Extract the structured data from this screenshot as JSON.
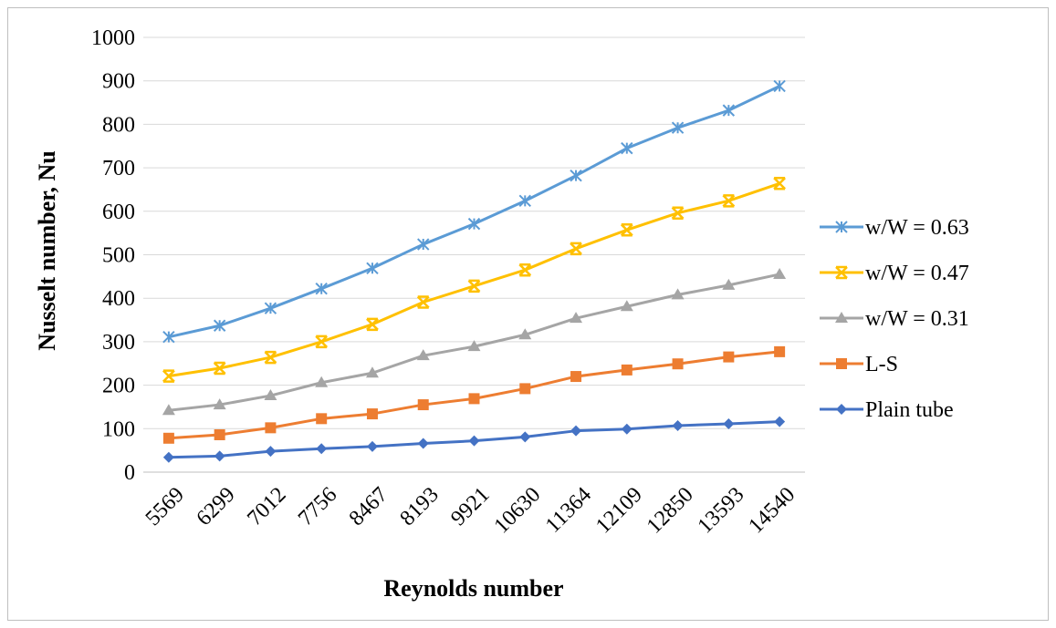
{
  "chart_data": {
    "type": "line",
    "xlabel": "Reynolds number",
    "ylabel": "Nusselt number, Nu",
    "ylim": [
      0,
      1000
    ],
    "yticks": [
      0,
      100,
      200,
      300,
      400,
      500,
      600,
      700,
      800,
      900,
      1000
    ],
    "grid": "horizontal",
    "legend_position": "right",
    "categories": [
      "5569",
      "6299",
      "7012",
      "7756",
      "8467",
      "8193",
      "9921",
      "10630",
      "11364",
      "12109",
      "12850",
      "13593",
      "14540"
    ],
    "series": [
      {
        "name": "w/W = 0.63",
        "color": "#5b9bd5",
        "marker": "star",
        "values": [
          311,
          337,
          377,
          422,
          469,
          524,
          571,
          624,
          682,
          745,
          792,
          832,
          888
        ]
      },
      {
        "name": "w/W = 0.47",
        "color": "#ffc000",
        "marker": "x-bar",
        "values": [
          221,
          239,
          264,
          300,
          340,
          391,
          428,
          465,
          514,
          557,
          596,
          624,
          664
        ]
      },
      {
        "name": "w/W = 0.31",
        "color": "#a5a5a5",
        "marker": "triangle",
        "values": [
          142,
          155,
          176,
          206,
          228,
          268,
          289,
          316,
          354,
          381,
          408,
          430,
          455
        ]
      },
      {
        "name": "L-S",
        "color": "#ed7d31",
        "marker": "square",
        "values": [
          78,
          86,
          102,
          123,
          134,
          155,
          169,
          192,
          220,
          235,
          249,
          265,
          277
        ]
      },
      {
        "name": "Plain tube",
        "color": "#4472c4",
        "marker": "diamond",
        "values": [
          34,
          37,
          48,
          54,
          59,
          66,
          72,
          81,
          95,
          99,
          107,
          111,
          116
        ]
      }
    ]
  }
}
